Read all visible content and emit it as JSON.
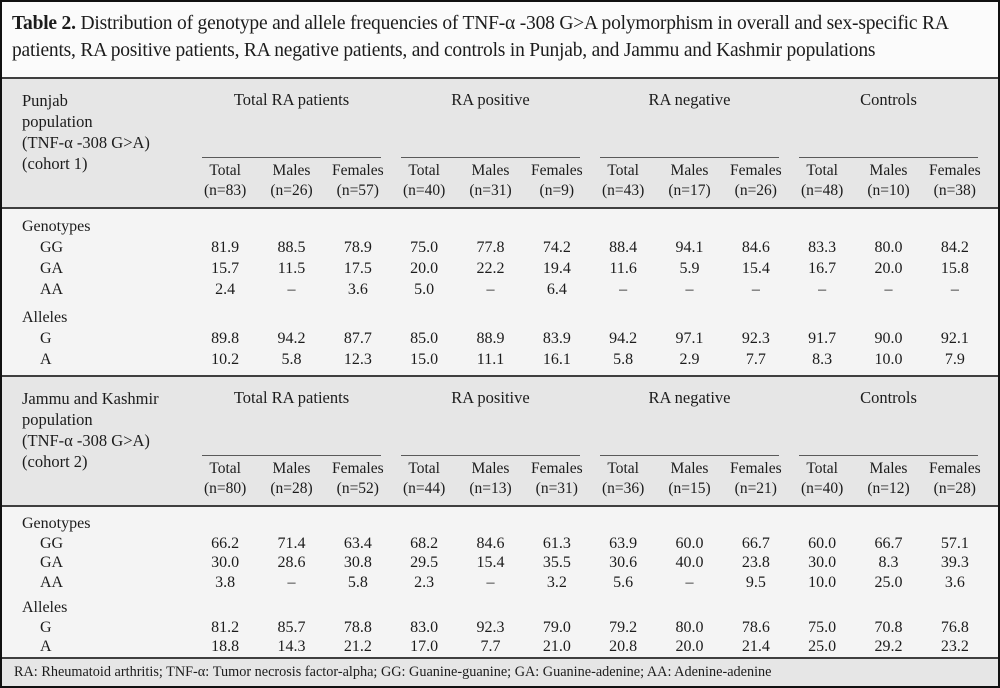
{
  "title": {
    "label": "Table 2.",
    "text": "Distribution of genotype and allele frequencies of TNF-α -308 G>A polymorphism in overall and sex-specific RA patients, RA positive patients, RA negative patients, and controls in Punjab, and Jammu and Kashmir populations"
  },
  "footnote": "RA: Rheumatoid arthritis; TNF-α: Tumor necrosis factor-alpha; GG: Guanine-guanine; GA: Guanine-adenine; AA: Adenine-adenine",
  "colors": {
    "header_bg": "#e6e6e6",
    "body_bg": "#f4f4f4",
    "page_bg": "#fafafa",
    "rule": "#3f3f3f",
    "outer_border": "#111111",
    "text": "#1c1c1c"
  },
  "groups": [
    "Total RA patients",
    "RA positive",
    "RA negative",
    "Controls"
  ],
  "sub_labels": [
    "Total",
    "Males",
    "Females"
  ],
  "blocks": [
    {
      "row_header_lines": [
        "Punjab",
        "population",
        "(TNF-α -308 G>A)",
        "(cohort 1)"
      ],
      "ns": [
        "(n=83)",
        "(n=26)",
        "(n=57)",
        "(n=40)",
        "(n=31)",
        "(n=9)",
        "(n=43)",
        "(n=17)",
        "(n=26)",
        "(n=48)",
        "(n=10)",
        "(n=38)"
      ],
      "sections": [
        {
          "label": "Genotypes",
          "rows": [
            {
              "label": "GG",
              "values": [
                "81.9",
                "88.5",
                "78.9",
                "75.0",
                "77.8",
                "74.2",
                "88.4",
                "94.1",
                "84.6",
                "83.3",
                "80.0",
                "84.2"
              ]
            },
            {
              "label": "GA",
              "values": [
                "15.7",
                "11.5",
                "17.5",
                "20.0",
                "22.2",
                "19.4",
                "11.6",
                "5.9",
                "15.4",
                "16.7",
                "20.0",
                "15.8"
              ]
            },
            {
              "label": "AA",
              "values": [
                "2.4",
                "–",
                "3.6",
                "5.0",
                "–",
                "6.4",
                "–",
                "–",
                "–",
                "–",
                "–",
                "–"
              ]
            }
          ]
        },
        {
          "label": "Alleles",
          "rows": [
            {
              "label": "G",
              "values": [
                "89.8",
                "94.2",
                "87.7",
                "85.0",
                "88.9",
                "83.9",
                "94.2",
                "97.1",
                "92.3",
                "91.7",
                "90.0",
                "92.1"
              ]
            },
            {
              "label": "A",
              "values": [
                "10.2",
                "5.8",
                "12.3",
                "15.0",
                "11.1",
                "16.1",
                "5.8",
                "2.9",
                "7.7",
                "8.3",
                "10.0",
                "7.9"
              ]
            }
          ]
        }
      ]
    },
    {
      "row_header_lines": [
        "Jammu and Kashmir",
        "population",
        "(TNF-α -308 G>A)",
        "(cohort 2)"
      ],
      "ns": [
        "(n=80)",
        "(n=28)",
        "(n=52)",
        "(n=44)",
        "(n=13)",
        "(n=31)",
        "(n=36)",
        "(n=15)",
        "(n=21)",
        "(n=40)",
        "(n=12)",
        "(n=28)"
      ],
      "sections": [
        {
          "label": "Genotypes",
          "rows": [
            {
              "label": "GG",
              "values": [
                "66.2",
                "71.4",
                "63.4",
                "68.2",
                "84.6",
                "61.3",
                "63.9",
                "60.0",
                "66.7",
                "60.0",
                "66.7",
                "57.1"
              ]
            },
            {
              "label": "GA",
              "values": [
                "30.0",
                "28.6",
                "30.8",
                "29.5",
                "15.4",
                "35.5",
                "30.6",
                "40.0",
                "23.8",
                "30.0",
                "8.3",
                "39.3"
              ]
            },
            {
              "label": "AA",
              "values": [
                "3.8",
                "–",
                "5.8",
                "2.3",
                "–",
                "3.2",
                "5.6",
                "–",
                "9.5",
                "10.0",
                "25.0",
                "3.6"
              ]
            }
          ]
        },
        {
          "label": "Alleles",
          "rows": [
            {
              "label": "G",
              "values": [
                "81.2",
                "85.7",
                "78.8",
                "83.0",
                "92.3",
                "79.0",
                "79.2",
                "80.0",
                "78.6",
                "75.0",
                "70.8",
                "76.8"
              ]
            },
            {
              "label": "A",
              "values": [
                "18.8",
                "14.3",
                "21.2",
                "17.0",
                "7.7",
                "21.0",
                "20.8",
                "20.0",
                "21.4",
                "25.0",
                "29.2",
                "23.2"
              ]
            }
          ]
        }
      ]
    }
  ]
}
